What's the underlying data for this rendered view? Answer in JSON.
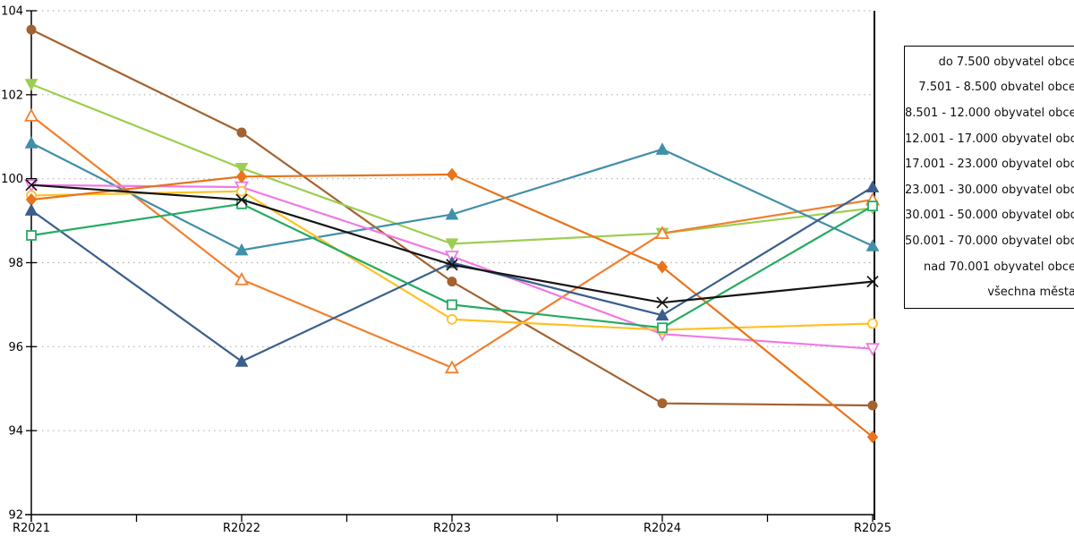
{
  "chart_data": {
    "type": "line",
    "title": "",
    "xlabel": "",
    "ylabel": "",
    "categories": [
      "R2021",
      "R2022",
      "R2023",
      "R2024",
      "R2025"
    ],
    "y_axis": {
      "min": 92,
      "max": 104,
      "tick_step": 2,
      "tick_labels": [
        "92",
        "94",
        "96",
        "98",
        "100",
        "102",
        "104"
      ]
    },
    "grid": {
      "horizontal": true,
      "style": "dotted",
      "color": "#b0b0b0"
    },
    "axis_color": "#000000",
    "legend_position": "right-outside",
    "series": [
      {
        "name": "do 7.500 obyvatel obce",
        "color": "#A3622F",
        "marker": "circle",
        "values": [
          103.55,
          101.1,
          97.55,
          94.65,
          94.6
        ]
      },
      {
        "name": "7.501 - 8.500 obvatel obce",
        "color": "#9CCE51",
        "marker": "triangle-down",
        "values": [
          102.25,
          100.25,
          98.45,
          98.7,
          99.3
        ]
      },
      {
        "name": "8.501 - 12.000 obyvatel obce",
        "color": "#F08030",
        "marker": "triangle-up-open",
        "values": [
          101.5,
          97.6,
          95.5,
          98.7,
          99.5
        ]
      },
      {
        "name": "12.001 - 17.000 obyvatel obce",
        "color": "#418FA9",
        "marker": "triangle-up",
        "values": [
          100.85,
          98.3,
          99.15,
          100.7,
          98.4
        ]
      },
      {
        "name": "17.001 - 23.000 obyvatel obce",
        "color": "#EF7BE5",
        "marker": "triangle-down-open",
        "values": [
          99.85,
          99.8,
          98.15,
          96.3,
          95.95
        ]
      },
      {
        "name": "23.001 - 30.000 obyvatel obce",
        "color": "#FFC125",
        "marker": "circle-open",
        "values": [
          99.6,
          99.7,
          96.65,
          96.4,
          96.55
        ]
      },
      {
        "name": "30.001 - 50.000 obyvatel obce",
        "color": "#E8741C",
        "marker": "diamond",
        "values": [
          99.5,
          100.05,
          100.1,
          97.9,
          93.85
        ]
      },
      {
        "name": "50.001 - 70.000 obyvatel obce",
        "color": "#3A5F8C",
        "marker": "triangle-up",
        "values": [
          99.25,
          95.65,
          98.0,
          96.75,
          99.8
        ]
      },
      {
        "name": "nad 70.001 obyvatel obce",
        "color": "#25AB62",
        "marker": "square-open",
        "values": [
          98.65,
          99.4,
          97.0,
          96.45,
          99.35
        ]
      },
      {
        "name": "všechna města",
        "color": "#141414",
        "marker": "x",
        "values": [
          99.85,
          99.5,
          97.95,
          97.05,
          97.55
        ]
      }
    ]
  }
}
